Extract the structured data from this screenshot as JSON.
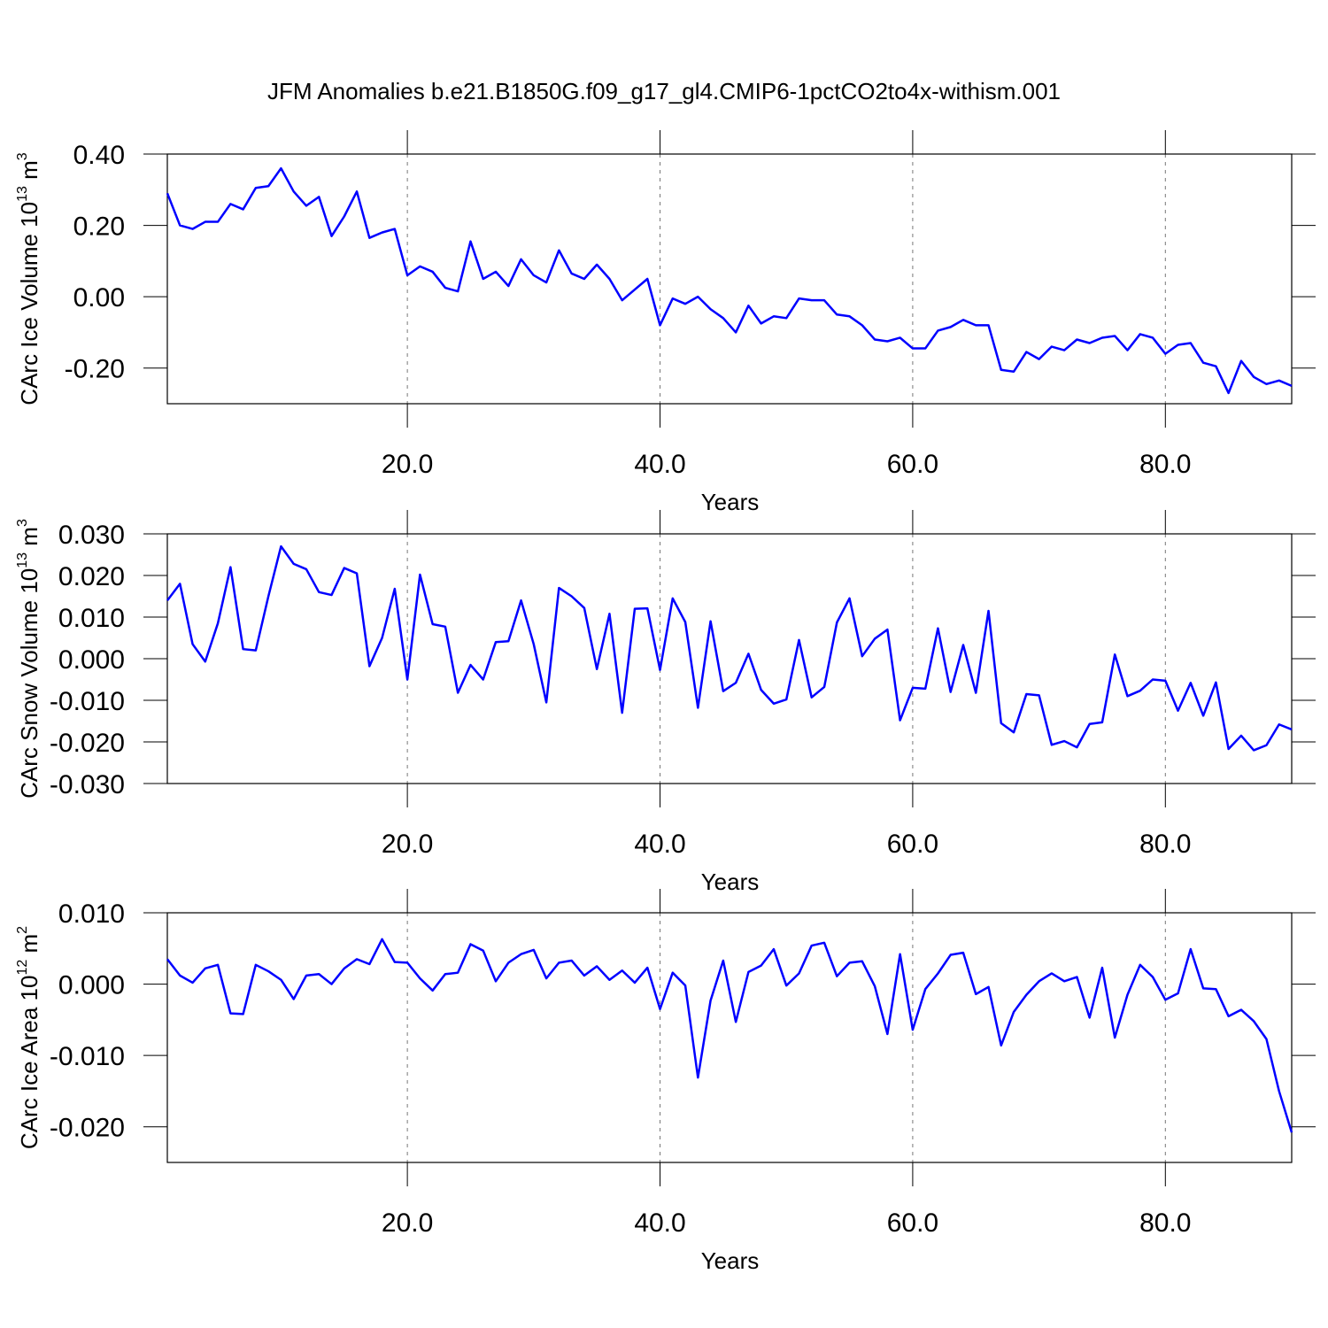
{
  "chart_data": [
    {
      "type": "line",
      "title": "JFM Anomalies b.e21.B1850G.f09_g17_gl4.CMIP6-1pctCO2to4x-withism.001",
      "ylabel": [
        "CArc Ice Volume 10",
        "13",
        " m",
        "3"
      ],
      "xlabel": "Years",
      "color": "#0000ff",
      "grid": "x",
      "xlim": [
        1,
        90
      ],
      "xticks": [
        {
          "value": 20,
          "label": "20.0"
        },
        {
          "value": 40,
          "label": "40.0"
        },
        {
          "value": 60,
          "label": "60.0"
        },
        {
          "value": 80,
          "label": "80.0"
        }
      ],
      "ylim": [
        -0.3,
        0.4
      ],
      "yticks": [
        {
          "value": -0.2,
          "label": "-0.20"
        },
        {
          "value": 0,
          "label": "0.00"
        },
        {
          "value": 0.2,
          "label": "0.20"
        },
        {
          "value": 0.4,
          "label": "0.40"
        }
      ],
      "x": [
        1,
        2,
        3,
        4,
        5,
        6,
        7,
        8,
        9,
        10,
        11,
        12,
        13,
        14,
        15,
        16,
        17,
        18,
        19,
        20,
        21,
        22,
        23,
        24,
        25,
        26,
        27,
        28,
        29,
        30,
        31,
        32,
        33,
        34,
        35,
        36,
        37,
        38,
        39,
        40,
        41,
        42,
        43,
        44,
        45,
        46,
        47,
        48,
        49,
        50,
        51,
        52,
        53,
        54,
        55,
        56,
        57,
        58,
        59,
        60,
        61,
        62,
        63,
        64,
        65,
        66,
        67,
        68,
        69,
        70,
        71,
        72,
        73,
        74,
        75,
        76,
        77,
        78,
        79,
        80,
        81,
        82,
        83,
        84,
        85,
        86,
        87,
        88,
        89,
        90
      ],
      "values": [
        0.29,
        0.2,
        0.19,
        0.21,
        0.21,
        0.26,
        0.245,
        0.305,
        0.31,
        0.36,
        0.295,
        0.255,
        0.28,
        0.17,
        0.225,
        0.295,
        0.165,
        0.18,
        0.19,
        0.06,
        0.085,
        0.07,
        0.025,
        0.015,
        0.155,
        0.05,
        0.07,
        0.03,
        0.105,
        0.06,
        0.04,
        0.13,
        0.065,
        0.05,
        0.09,
        0.05,
        -0.01,
        0.02,
        0.05,
        -0.08,
        -0.005,
        -0.02,
        0.0,
        -0.035,
        -0.06,
        -0.1,
        -0.025,
        -0.075,
        -0.055,
        -0.06,
        -0.005,
        -0.01,
        -0.01,
        -0.05,
        -0.055,
        -0.08,
        -0.12,
        -0.125,
        -0.115,
        -0.145,
        -0.145,
        -0.095,
        -0.085,
        -0.065,
        -0.08,
        -0.08,
        -0.205,
        -0.21,
        -0.155,
        -0.175,
        -0.14,
        -0.15,
        -0.12,
        -0.13,
        -0.115,
        -0.11,
        -0.15,
        -0.105,
        -0.115,
        -0.16,
        -0.135,
        -0.13,
        -0.185,
        -0.195,
        -0.27,
        -0.18,
        -0.225,
        -0.245,
        -0.235,
        -0.25
      ]
    },
    {
      "type": "line",
      "ylabel": [
        "CArc Snow Volume 10",
        "13",
        " m",
        "3"
      ],
      "xlabel": "Years",
      "color": "#0000ff",
      "grid": "x",
      "xlim": [
        1,
        90
      ],
      "xticks": [
        {
          "value": 20,
          "label": "20.0"
        },
        {
          "value": 40,
          "label": "40.0"
        },
        {
          "value": 60,
          "label": "60.0"
        },
        {
          "value": 80,
          "label": "80.0"
        }
      ],
      "ylim": [
        -0.03,
        0.03
      ],
      "yticks": [
        {
          "value": -0.03,
          "label": "-0.030"
        },
        {
          "value": -0.02,
          "label": "-0.020"
        },
        {
          "value": -0.01,
          "label": "-0.010"
        },
        {
          "value": 0,
          "label": "0.000"
        },
        {
          "value": 0.01,
          "label": "0.010"
        },
        {
          "value": 0.02,
          "label": "0.020"
        },
        {
          "value": 0.03,
          "label": "0.030"
        }
      ],
      "x": [
        1,
        2,
        3,
        4,
        5,
        6,
        7,
        8,
        9,
        10,
        11,
        12,
        13,
        14,
        15,
        16,
        17,
        18,
        19,
        20,
        21,
        22,
        23,
        24,
        25,
        26,
        27,
        28,
        29,
        30,
        31,
        32,
        33,
        34,
        35,
        36,
        37,
        38,
        39,
        40,
        41,
        42,
        43,
        44,
        45,
        46,
        47,
        48,
        49,
        50,
        51,
        52,
        53,
        54,
        55,
        56,
        57,
        58,
        59,
        60,
        61,
        62,
        63,
        64,
        65,
        66,
        67,
        68,
        69,
        70,
        71,
        72,
        73,
        74,
        75,
        76,
        77,
        78,
        79,
        80,
        81,
        82,
        83,
        84,
        85,
        86,
        87,
        88,
        89,
        90
      ],
      "values": [
        0.014,
        0.018,
        0.0035,
        -0.0007,
        0.0085,
        0.022,
        0.0023,
        0.002,
        0.015,
        0.027,
        0.0228,
        0.0215,
        0.016,
        0.0153,
        0.0218,
        0.0205,
        -0.0018,
        0.005,
        0.0168,
        -0.005,
        0.0202,
        0.0083,
        0.0077,
        -0.0082,
        -0.0015,
        -0.005,
        0.004,
        0.0042,
        0.014,
        0.0035,
        -0.0105,
        0.017,
        0.015,
        0.0122,
        -0.0025,
        0.0108,
        -0.013,
        0.012,
        0.0121,
        -0.0027,
        0.0145,
        0.0088,
        -0.0118,
        0.009,
        -0.0078,
        -0.0058,
        0.0012,
        -0.0075,
        -0.0108,
        -0.0098,
        0.0045,
        -0.0093,
        -0.0068,
        0.0087,
        0.0145,
        0.0006,
        0.0048,
        0.007,
        -0.0148,
        -0.007,
        -0.0072,
        0.0073,
        -0.008,
        0.0033,
        -0.0082,
        0.0115,
        -0.0155,
        -0.0177,
        -0.0085,
        -0.0088,
        -0.0207,
        -0.0198,
        -0.0213,
        -0.0157,
        -0.0153,
        0.001,
        -0.009,
        -0.0077,
        -0.005,
        -0.0053,
        -0.0125,
        -0.0058,
        -0.0137,
        -0.0057,
        -0.0217,
        -0.0185,
        -0.022,
        -0.0208,
        -0.0158,
        -0.017
      ]
    },
    {
      "type": "line",
      "ylabel": [
        "CArc Ice Area 10",
        "12",
        " m",
        "2"
      ],
      "xlabel": "Years",
      "color": "#0000ff",
      "grid": "x",
      "xlim": [
        1,
        90
      ],
      "xticks": [
        {
          "value": 20,
          "label": "20.0"
        },
        {
          "value": 40,
          "label": "40.0"
        },
        {
          "value": 60,
          "label": "60.0"
        },
        {
          "value": 80,
          "label": "80.0"
        }
      ],
      "ylim": [
        -0.025,
        0.01
      ],
      "yticks": [
        {
          "value": -0.02,
          "label": "-0.020"
        },
        {
          "value": -0.01,
          "label": "-0.010"
        },
        {
          "value": 0,
          "label": "0.000"
        },
        {
          "value": 0.01,
          "label": "0.010"
        }
      ],
      "x": [
        1,
        2,
        3,
        4,
        5,
        6,
        7,
        8,
        9,
        10,
        11,
        12,
        13,
        14,
        15,
        16,
        17,
        18,
        19,
        20,
        21,
        22,
        23,
        24,
        25,
        26,
        27,
        28,
        29,
        30,
        31,
        32,
        33,
        34,
        35,
        36,
        37,
        38,
        39,
        40,
        41,
        42,
        43,
        44,
        45,
        46,
        47,
        48,
        49,
        50,
        51,
        52,
        53,
        54,
        55,
        56,
        57,
        58,
        59,
        60,
        61,
        62,
        63,
        64,
        65,
        66,
        67,
        68,
        69,
        70,
        71,
        72,
        73,
        74,
        75,
        76,
        77,
        78,
        79,
        80,
        81,
        82,
        83,
        84,
        85,
        86,
        87,
        88,
        89,
        90
      ],
      "values": [
        0.0035,
        0.0012,
        0.0002,
        0.0022,
        0.0027,
        -0.0041,
        -0.0042,
        0.0027,
        0.0018,
        0.0006,
        -0.0021,
        0.0012,
        0.0014,
        0.0,
        0.0022,
        0.0035,
        0.0028,
        0.0063,
        0.0031,
        0.003,
        0.0008,
        -0.0009,
        0.0014,
        0.0016,
        0.0056,
        0.0047,
        0.0004,
        0.003,
        0.0042,
        0.0048,
        0.0008,
        0.003,
        0.0033,
        0.0012,
        0.0025,
        0.0006,
        0.0019,
        0.0002,
        0.0023,
        -0.0035,
        0.0016,
        -0.0002,
        -0.0131,
        -0.0023,
        0.0033,
        -0.0053,
        0.0017,
        0.0026,
        0.0049,
        -0.0002,
        0.0015,
        0.0054,
        0.0058,
        0.0011,
        0.003,
        0.0032,
        -0.0003,
        -0.007,
        0.0042,
        -0.0064,
        -0.0007,
        0.0015,
        0.0041,
        0.0044,
        -0.0014,
        -0.0004,
        -0.0086,
        -0.0039,
        -0.0015,
        0.0004,
        0.0015,
        0.0004,
        0.001,
        -0.0047,
        0.0023,
        -0.0075,
        -0.0015,
        0.0027,
        0.001,
        -0.0022,
        -0.0013,
        0.0049,
        -0.0006,
        -0.0007,
        -0.0045,
        -0.0036,
        -0.0052,
        -0.0077,
        -0.015,
        -0.0208
      ]
    }
  ]
}
